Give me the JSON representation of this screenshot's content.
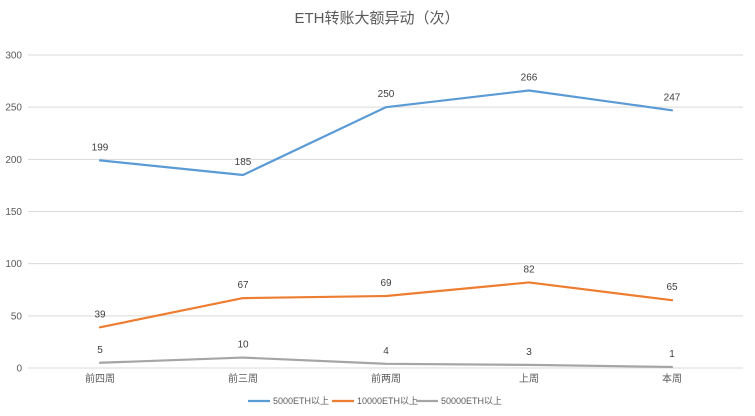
{
  "chart_data": {
    "type": "line",
    "title": "ETH转账大额异动（次）",
    "categories": [
      "前四周",
      "前三周",
      "前两周",
      "上周",
      "本周"
    ],
    "series": [
      {
        "name": "5000ETH以上",
        "values": [
          199,
          185,
          250,
          266,
          247
        ],
        "color": "#5b9bd5"
      },
      {
        "name": "10000ETH以上",
        "values": [
          39,
          67,
          69,
          82,
          65
        ],
        "color": "#ed7d31"
      },
      {
        "name": "50000ETH以上",
        "values": [
          5,
          10,
          4,
          3,
          1
        ],
        "color": "#a5a5a5"
      }
    ],
    "ylim": [
      0,
      300
    ],
    "yticks": [
      0,
      50,
      100,
      150,
      200,
      250,
      300
    ],
    "grid": true,
    "legend": "bottom"
  }
}
